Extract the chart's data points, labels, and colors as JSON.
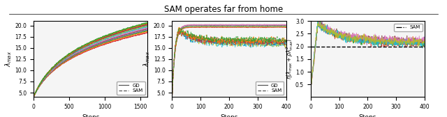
{
  "title": "SAM operates far from home",
  "subplot1": {
    "xlabel": "Steps",
    "ylabel": "$\\lambda_{max}$",
    "xlim": [
      0,
      1600
    ],
    "ylim": [
      4.0,
      21.0
    ],
    "yticks": [
      5.0,
      7.5,
      10.0,
      12.5,
      15.0,
      17.5,
      20.0
    ],
    "xticks": [
      0,
      500,
      1000,
      1500
    ],
    "num_steps": 1600,
    "gd_colors": [
      "#d62728",
      "#ff7f0e",
      "#2ca02c",
      "#9467bd",
      "#8c564b",
      "#e377c2"
    ],
    "sam_colors": [
      "#17becf",
      "#bcbd22",
      "#1f77b4",
      "#d62728",
      "#ff7f0e",
      "#2ca02c"
    ],
    "gd_final": [
      18.4,
      18.7,
      18.9,
      19.1,
      19.3,
      19.5
    ],
    "sam_final": [
      19.8,
      20.0,
      20.2,
      20.3,
      20.5,
      20.6
    ]
  },
  "subplot2": {
    "xlabel": "Steps",
    "ylabel": "$\\lambda_{max}$",
    "xlim": [
      0,
      400
    ],
    "ylim": [
      4.0,
      21.0
    ],
    "yticks": [
      5.0,
      7.5,
      10.0,
      12.5,
      15.0,
      17.5,
      20.0
    ],
    "xticks": [
      0,
      100,
      200,
      300,
      400
    ],
    "num_steps": 400,
    "gd_colors": [
      "#d62728",
      "#ff7f0e",
      "#2ca02c",
      "#9467bd",
      "#8c564b",
      "#e377c2"
    ],
    "sam_colors": [
      "#17becf",
      "#bcbd22",
      "#1f77b4",
      "#d62728",
      "#ff7f0e",
      "#2ca02c"
    ],
    "gd_final": [
      19.6,
      19.7,
      19.8,
      20.0,
      20.1,
      20.2
    ],
    "sam_final": [
      15.8,
      16.0,
      16.2,
      16.4,
      16.6,
      16.8
    ]
  },
  "subplot3": {
    "xlabel": "Steps",
    "ylabel": "$\\eta(\\lambda_{max} + \\rho\\lambda_{max}^2)$",
    "xlim": [
      0,
      400
    ],
    "ylim": [
      0.0,
      3.0
    ],
    "yticks": [
      0.5,
      1.0,
      1.5,
      2.0,
      2.5,
      3.0
    ],
    "xticks": [
      0,
      100,
      200,
      300,
      400
    ],
    "hline_y": 2.0,
    "num_steps": 400,
    "colors": [
      "#d62728",
      "#ff7f0e",
      "#2ca02c",
      "#9467bd",
      "#8c564b",
      "#e377c2",
      "#17becf",
      "#bcbd22"
    ],
    "final_vals": [
      2.12,
      2.15,
      2.17,
      2.2,
      2.22,
      2.25,
      2.1,
      2.18
    ]
  },
  "background_color": "#f5f5f5"
}
